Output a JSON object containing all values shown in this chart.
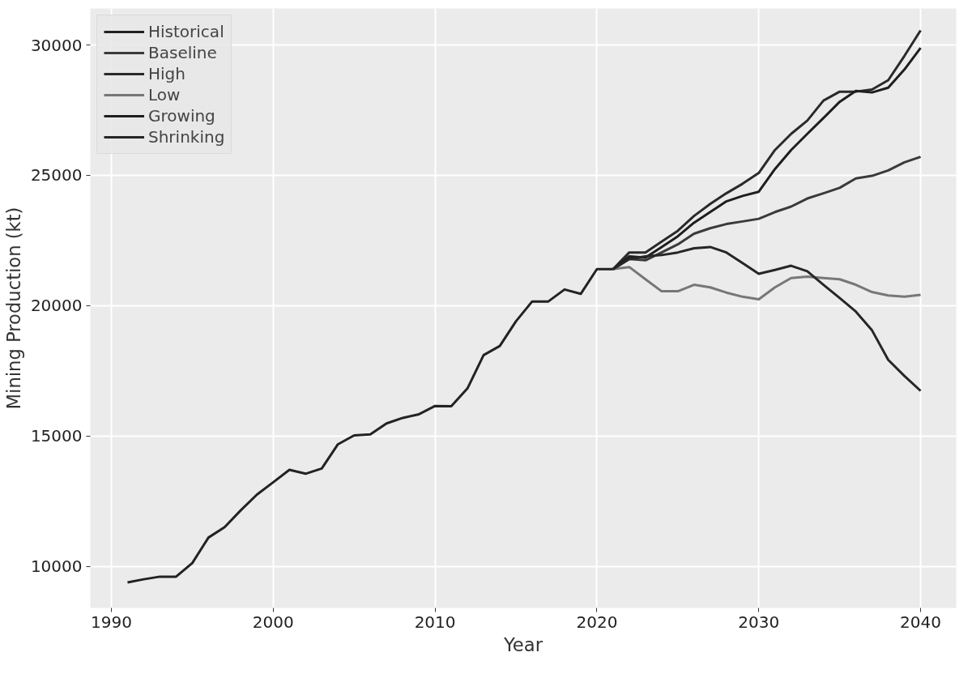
{
  "chart_data": {
    "type": "line",
    "xlabel": "Year",
    "ylabel": "Mining Production (kt)",
    "xlim": [
      1988.7,
      2042.2
    ],
    "ylim": [
      8400,
      31400
    ],
    "xticks": [
      1990,
      2000,
      2010,
      2020,
      2030,
      2040
    ],
    "yticks": [
      10000,
      15000,
      20000,
      25000,
      30000
    ],
    "grid": true,
    "legend": "top left",
    "marker": "none",
    "line_style": "solid",
    "series": [
      {
        "name": "Historical",
        "color": "#222222",
        "x": [
          1991,
          1992,
          1993,
          1994,
          1995,
          1996,
          1997,
          1998,
          1999,
          2000,
          2001,
          2002,
          2003,
          2004,
          2005,
          2006,
          2007,
          2008,
          2009,
          2010,
          2011,
          2012,
          2013,
          2014,
          2015,
          2016,
          2017,
          2018,
          2019,
          2020,
          2021
        ],
        "values": [
          9380,
          9500,
          9600,
          9600,
          10120,
          11100,
          11500,
          12150,
          12750,
          13220,
          13700,
          13550,
          13750,
          14680,
          15020,
          15060,
          15480,
          15690,
          15830,
          16150,
          16140,
          16820,
          18100,
          18450,
          19400,
          20160,
          20160,
          20620,
          20450,
          21400,
          21400
        ]
      },
      {
        "name": "Baseline",
        "color": "#3a3a3a",
        "x": [
          2021,
          2022,
          2023,
          2024,
          2025,
          2026,
          2027,
          2028,
          2029,
          2030,
          2031,
          2032,
          2033,
          2034,
          2035,
          2036,
          2037,
          2038,
          2039,
          2040
        ],
        "values": [
          21400,
          21790,
          21740,
          22040,
          22350,
          22760,
          22970,
          23130,
          23230,
          23330,
          23590,
          23800,
          24110,
          24310,
          24520,
          24880,
          24980,
          25190,
          25500,
          25710
        ]
      },
      {
        "name": "High",
        "color": "#2a2a2a",
        "x": [
          2021,
          2022,
          2023,
          2024,
          2025,
          2026,
          2027,
          2028,
          2029,
          2030,
          2031,
          2032,
          2033,
          2034,
          2035,
          2036,
          2037,
          2038,
          2039,
          2040
        ],
        "values": [
          21400,
          22040,
          22040,
          22455,
          22870,
          23440,
          23900,
          24310,
          24675,
          25090,
          25970,
          26590,
          27100,
          27870,
          28210,
          28210,
          28290,
          28650,
          29580,
          30560
        ]
      },
      {
        "name": "Low",
        "color": "#777777",
        "x": [
          2021,
          2022,
          2023,
          2024,
          2025,
          2026,
          2027,
          2028,
          2029,
          2030,
          2031,
          2032,
          2033,
          2034,
          2035,
          2036,
          2037,
          2038,
          2039,
          2040
        ],
        "values": [
          21400,
          21480,
          21010,
          20550,
          20550,
          20800,
          20700,
          20500,
          20340,
          20240,
          20700,
          21060,
          21110,
          21060,
          21010,
          20800,
          20520,
          20390,
          20340,
          20410
        ]
      },
      {
        "name": "Growing",
        "color": "#1e1e1e",
        "x": [
          2021,
          2022,
          2023,
          2024,
          2025,
          2026,
          2027,
          2028,
          2029,
          2030,
          2031,
          2032,
          2033,
          2034,
          2035,
          2036,
          2037,
          2038,
          2039,
          2040
        ],
        "values": [
          21400,
          21890,
          21840,
          22250,
          22660,
          23180,
          23590,
          24000,
          24210,
          24370,
          25240,
          25970,
          26590,
          27200,
          27820,
          28240,
          28180,
          28360,
          29060,
          29890
        ]
      },
      {
        "name": "Shrinking",
        "color": "#262626",
        "x": [
          2021,
          2022,
          2023,
          2024,
          2025,
          2026,
          2027,
          2028,
          2029,
          2030,
          2031,
          2032,
          2033,
          2034,
          2035,
          2036,
          2037,
          2038,
          2039,
          2040
        ],
        "values": [
          21400,
          21790,
          21890,
          21940,
          22040,
          22200,
          22250,
          22040,
          21630,
          21220,
          21370,
          21530,
          21320,
          20800,
          20290,
          19770,
          19050,
          17920,
          17300,
          16730
        ]
      }
    ]
  }
}
